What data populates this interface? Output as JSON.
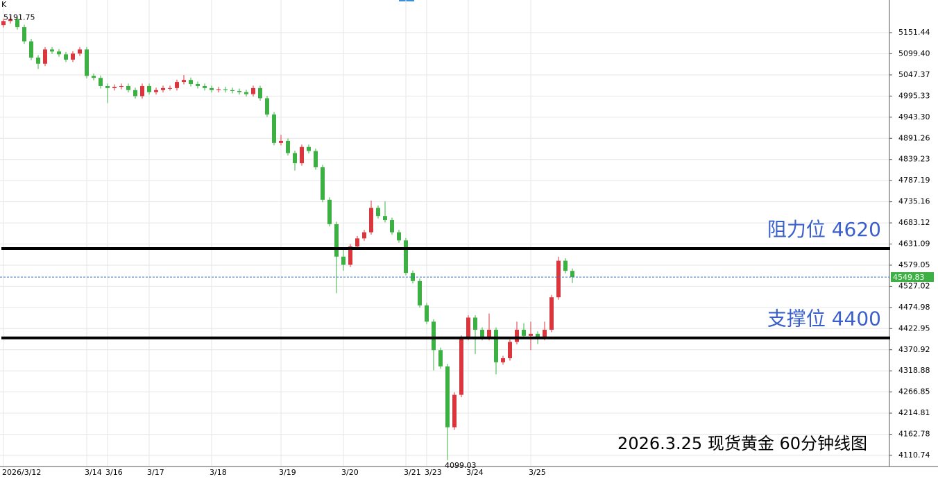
{
  "chart_data": {
    "type": "candlestick",
    "indicator_label": "K",
    "title": "2026.3.25 现货黄金 60分钟线图",
    "up_color": "#d9363e",
    "down_color": "#3cb043",
    "categories": [
      "2026/3/12",
      null,
      null,
      null,
      null,
      null,
      null,
      null,
      null,
      null,
      null,
      null,
      "3/14",
      null,
      null,
      "3/16",
      null,
      null,
      null,
      null,
      null,
      "3/17",
      null,
      null,
      null,
      null,
      null,
      null,
      null,
      null,
      "3/18",
      null,
      null,
      null,
      null,
      null,
      null,
      null,
      null,
      null,
      "3/19",
      null,
      null,
      null,
      null,
      null,
      null,
      null,
      null,
      "3/20",
      null,
      null,
      null,
      null,
      null,
      null,
      null,
      null,
      "3/21",
      null,
      null,
      "3/23",
      null,
      null,
      null,
      null,
      null,
      "3/24",
      null,
      null,
      null,
      null,
      null,
      null,
      null,
      null,
      "3/25",
      null,
      null,
      null,
      null,
      null,
      null
    ],
    "open": [
      5170,
      5180,
      5185,
      5165,
      5130,
      5090,
      5075,
      5110,
      5105,
      5098,
      5085,
      5100,
      5110,
      5045,
      5040,
      5020,
      5015,
      5018,
      5020,
      5010,
      4995,
      5020,
      5005,
      5010,
      5015,
      5015,
      5030,
      5035,
      5025,
      5020,
      5015,
      5010,
      5012,
      5010,
      5008,
      5005,
      5000,
      5015,
      4990,
      4950,
      4880,
      4885,
      4855,
      4830,
      4870,
      4860,
      4820,
      4740,
      4680,
      4600,
      4580,
      4625,
      4645,
      4660,
      4720,
      4700,
      4690,
      4660,
      4640,
      4560,
      4540,
      4480,
      4440,
      4370,
      4330,
      4180,
      4260,
      4400,
      4450,
      4420,
      4400,
      4420,
      4340,
      4350,
      4390,
      4420,
      4405,
      4410,
      4400,
      4420,
      4500,
      4590,
      4565
    ],
    "high": [
      5186,
      5191.75,
      5191,
      5171,
      5136,
      5096,
      5116,
      5116,
      5111,
      5104,
      5106,
      5116,
      5116,
      5051,
      5046,
      5026,
      5024,
      5026,
      5026,
      5016,
      5026,
      5026,
      5016,
      5021,
      5021,
      5036,
      5047,
      5041,
      5031,
      5026,
      5021,
      5018,
      5018,
      5016,
      5014,
      5011,
      5021,
      5021,
      4996,
      4956,
      4900,
      4891,
      4861,
      4876,
      4876,
      4866,
      4826,
      4746,
      4686,
      4620,
      4631,
      4651,
      4666,
      4738,
      4726,
      4736,
      4696,
      4666,
      4646,
      4566,
      4546,
      4486,
      4446,
      4376,
      4336,
      4266,
      4406,
      4456,
      4456,
      4426,
      4460,
      4426,
      4356,
      4396,
      4440,
      4436,
      4440,
      4416,
      4440,
      4506,
      4600,
      4596,
      4571
    ],
    "low": [
      5164,
      5174,
      5159,
      5124,
      5084,
      5062,
      5069,
      5099,
      5092,
      5079,
      5079,
      5094,
      5039,
      5034,
      5014,
      4978,
      5009,
      5012,
      5004,
      4989,
      4989,
      4999,
      4999,
      5004,
      5009,
      5009,
      5024,
      5019,
      5014,
      5009,
      5004,
      5004,
      5004,
      5002,
      4999,
      4994,
      4994,
      4984,
      4944,
      4874,
      4874,
      4849,
      4812,
      4824,
      4854,
      4814,
      4734,
      4674,
      4510,
      4565,
      4574,
      4619,
      4639,
      4654,
      4694,
      4684,
      4654,
      4634,
      4554,
      4534,
      4474,
      4434,
      4320,
      4324,
      4099.03,
      4174,
      4254,
      4394,
      4360,
      4394,
      4394,
      4310,
      4334,
      4344,
      4384,
      4399,
      4370,
      4385,
      4394,
      4414,
      4494,
      4559,
      4535
    ],
    "close": [
      5180,
      5185,
      5165,
      5130,
      5090,
      5075,
      5110,
      5105,
      5098,
      5085,
      5100,
      5110,
      5045,
      5040,
      5020,
      5015,
      5018,
      5020,
      5010,
      4995,
      5020,
      5005,
      5010,
      5015,
      5015,
      5030,
      5035,
      5025,
      5020,
      5015,
      5010,
      5012,
      5010,
      5008,
      5005,
      5000,
      5015,
      4990,
      4950,
      4880,
      4885,
      4855,
      4830,
      4870,
      4860,
      4820,
      4740,
      4680,
      4600,
      4580,
      4625,
      4645,
      4660,
      4720,
      4700,
      4690,
      4660,
      4640,
      4560,
      4540,
      4480,
      4440,
      4370,
      4330,
      4180,
      4260,
      4400,
      4450,
      4420,
      4400,
      4420,
      4340,
      4350,
      4390,
      4420,
      4405,
      4410,
      4400,
      4420,
      4500,
      4590,
      4565,
      4549.83
    ],
    "ylim": [
      4083.4,
      5231.8
    ],
    "yticks": [
      5151.44,
      {
        "value": 5099.4,
        "label": "5099.40"
      },
      5047.37,
      4995.33,
      {
        "value": 4943.3,
        "label": "4943.30"
      },
      4891.26,
      4839.23,
      4787.19,
      4735.16,
      4683.12,
      4631.09,
      4579.05,
      4527.02,
      4474.98,
      4422.95,
      4370.92,
      4318.88,
      4266.85,
      4214.81,
      4162.78,
      4110.74
    ],
    "grid": true,
    "levels": [
      {
        "label": "阻力位 4620",
        "value": 4620
      },
      {
        "label": "支撑位 4400",
        "value": 4400
      }
    ],
    "level_color": "#000000",
    "annotation_color": "#3a5fcd"
  }
}
